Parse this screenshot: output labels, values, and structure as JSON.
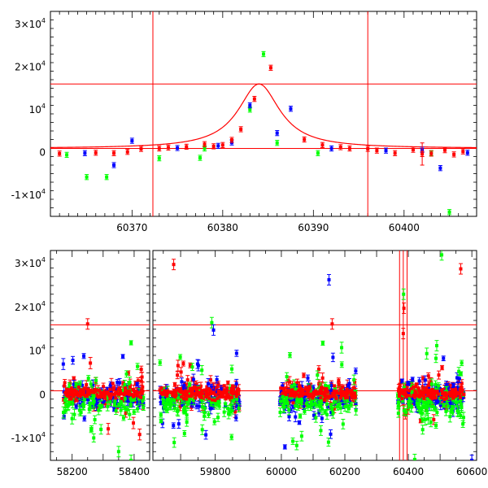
{
  "chart_data": [
    {
      "type": "scatter",
      "title": "",
      "xlabel": "",
      "ylabel": "",
      "xlim": [
        60361,
        60408
      ],
      "ylim": [
        -15000,
        33000
      ],
      "x_ticks": [
        {
          "value": 60370,
          "label": "60370"
        },
        {
          "value": 60380,
          "label": "60380"
        },
        {
          "value": 60390,
          "label": "60390"
        },
        {
          "value": 60400,
          "label": "60400"
        }
      ],
      "y_ticks": [
        {
          "value": -10000,
          "label": "-1×10",
          "exp": "4"
        },
        {
          "value": 0,
          "label": "0",
          "exp": ""
        },
        {
          "value": 10000,
          "label": "10",
          "exp": "4"
        },
        {
          "value": 20000,
          "label": "2×10",
          "exp": "4"
        },
        {
          "value": 30000,
          "label": "3×10",
          "exp": "4"
        }
      ],
      "hlines": [
        900,
        16000
      ],
      "vlines": [
        60372.3,
        60396
      ],
      "model_curve": {
        "peak_t": 60384,
        "peak": 16000,
        "baseline": 900,
        "width": 2.8,
        "color": "#ff0000"
      },
      "series": [
        {
          "color": "#00ff00",
          "points": [
            [
              60362.8,
              -600
            ],
            [
              60365,
              -5800
            ],
            [
              60367.2,
              -5800
            ],
            [
              60373,
              -1400
            ],
            [
              60377.5,
              -1300
            ],
            [
              60378,
              900
            ],
            [
              60383,
              10000
            ],
            [
              60384.5,
              23000
            ],
            [
              60386,
              2200
            ],
            [
              60390.5,
              -200
            ],
            [
              60403,
              -200
            ],
            [
              60405,
              -14000
            ]
          ]
        },
        {
          "color": "#0000ff",
          "points": [
            [
              60364.8,
              -200
            ],
            [
              60368,
              -3000
            ],
            [
              60370,
              2700
            ],
            [
              60375,
              1000
            ],
            [
              60379.5,
              1500
            ],
            [
              60381,
              2300
            ],
            [
              60383,
              11000
            ],
            [
              60386,
              4500
            ],
            [
              60387.5,
              10200
            ],
            [
              60392,
              900
            ],
            [
              60398,
              400
            ],
            [
              60402,
              600
            ],
            [
              60404,
              -3700
            ],
            [
              60407,
              -100
            ]
          ]
        },
        {
          "color": "#ff0000",
          "points": [
            [
              60362,
              -300
            ],
            [
              60366,
              -100
            ],
            [
              60368,
              -200
            ],
            [
              60369.5,
              100
            ],
            [
              60371,
              800
            ],
            [
              60373,
              900
            ],
            [
              60374,
              1100
            ],
            [
              60376,
              1300
            ],
            [
              60378,
              1900
            ],
            [
              60379,
              1400
            ],
            [
              60380,
              1700
            ],
            [
              60381,
              2900
            ],
            [
              60382,
              5400
            ],
            [
              60383.5,
              12500
            ],
            [
              60385.3,
              19800
            ],
            [
              60389,
              3000
            ],
            [
              60391,
              1700
            ],
            [
              60393,
              1200
            ],
            [
              60394,
              900
            ],
            [
              60396,
              800
            ],
            [
              60397,
              400
            ],
            [
              60399,
              -200
            ],
            [
              60401,
              600
            ],
            [
              60402,
              -400
            ],
            [
              60403,
              -300
            ],
            [
              60404.5,
              500
            ],
            [
              60405.5,
              -500
            ],
            [
              60406.5,
              200
            ]
          ],
          "errorbars": [
            [
              60402,
              -400,
              2600
            ]
          ]
        }
      ]
    },
    {
      "type": "scatter",
      "title": "",
      "xlabel": "",
      "ylabel": "",
      "broken_x_axis": true,
      "ylim": [
        -15000,
        33000
      ],
      "panels": [
        {
          "xlim": [
            58130,
            58450
          ],
          "x_ticks": [
            {
              "value": 58200,
              "label": "58200"
            },
            {
              "value": 58400,
              "label": "58400"
            }
          ]
        },
        {
          "xlim": [
            59620,
            59890
          ],
          "x_ticks": [
            {
              "value": 59800,
              "label": "59800"
            }
          ]
        },
        {
          "xlim": [
            59890,
            60615
          ],
          "x_ticks": [
            {
              "value": 60000,
              "label": "60000"
            },
            {
              "value": 60200,
              "label": "60200"
            },
            {
              "value": 60400,
              "label": "60400"
            },
            {
              "value": 60600,
              "label": "60600"
            }
          ]
        }
      ],
      "y_ticks": [
        {
          "value": -10000,
          "label": "-1×10",
          "exp": "4"
        },
        {
          "value": 0,
          "label": "0",
          "exp": ""
        },
        {
          "value": 10000,
          "label": "10",
          "exp": "4"
        },
        {
          "value": 20000,
          "label": "2×10",
          "exp": "4"
        },
        {
          "value": 30000,
          "label": "3×10",
          "exp": "4"
        }
      ],
      "hlines": [
        900,
        16000
      ],
      "vlines": [
        60372.3,
        60384,
        60396
      ],
      "season_ranges": [
        [
          58170,
          58430
        ],
        [
          59640,
          59870
        ],
        [
          59995,
          60235
        ],
        [
          60365,
          60575
        ]
      ],
      "series": [
        {
          "color": "#ff0000",
          "scatter_sd": 1400,
          "offset": 400,
          "outlier_rate": 0.16,
          "outlier_sd": 4500
        },
        {
          "color": "#0000ff",
          "scatter_sd": 1500,
          "offset": -500,
          "outlier_rate": 0.14,
          "outlier_sd": 5000
        },
        {
          "color": "#00ff00",
          "scatter_sd": 1700,
          "offset": -1500,
          "outlier_rate": 0.22,
          "outlier_sd": 5500
        }
      ],
      "notable_points": [
        {
          "color": "#ff0000",
          "x": 59680,
          "y": 29800
        },
        {
          "color": "#ff0000",
          "x": 60565,
          "y": 28800
        },
        {
          "color": "#00ff00",
          "x": 60505,
          "y": 32000
        },
        {
          "color": "#ff0000",
          "x": 58250,
          "y": 16200
        },
        {
          "color": "#00ff00",
          "x": 59790,
          "y": 16500
        },
        {
          "color": "#0000ff",
          "x": 59795,
          "y": 14800
        },
        {
          "color": "#0000ff",
          "x": 60150,
          "y": 26300
        },
        {
          "color": "#ff0000",
          "x": 60160,
          "y": 16200
        },
        {
          "color": "#00ff00",
          "x": 60385,
          "y": 23000
        },
        {
          "color": "#ff0000",
          "x": 60386,
          "y": 19800
        },
        {
          "color": "#ff0000",
          "x": 60384,
          "y": 14000
        },
        {
          "color": "#00ff00",
          "x": 58350,
          "y": -13000
        },
        {
          "color": "#00ff00",
          "x": 58390,
          "y": -15000
        },
        {
          "color": "#0000ff",
          "x": 60600,
          "y": -15000
        },
        {
          "color": "#00ff00",
          "x": 60420,
          "y": -14800
        }
      ]
    }
  ]
}
